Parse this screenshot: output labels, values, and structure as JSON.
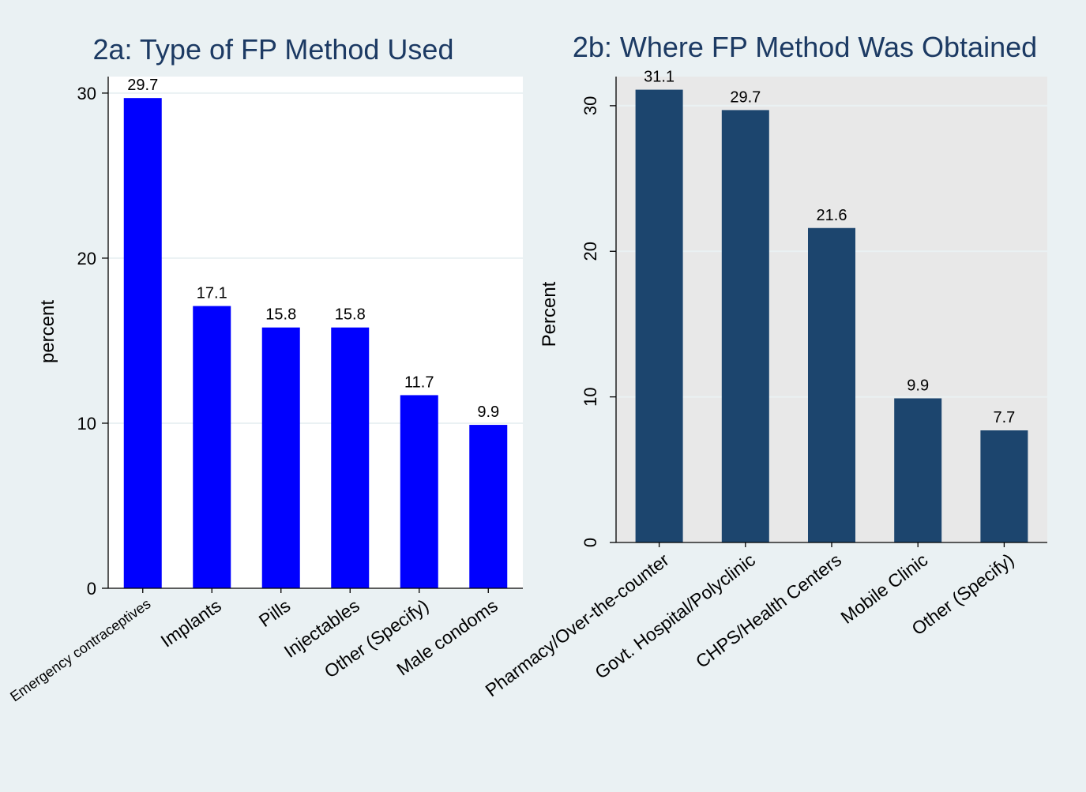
{
  "colors": {
    "background": "#eaf1f3",
    "plot_a_bg": "#ffffff",
    "plot_b_bg": "#e8e8e8",
    "bar_a": "#0000ff",
    "bar_b": "#1c456e",
    "title": "#1c3a63",
    "grid": "#eaf1f3"
  },
  "chart_data": [
    {
      "type": "bar",
      "title": "2a: Type of FP Method Used",
      "ylabel": "percent",
      "xlabel": "",
      "ylim": [
        0,
        31
      ],
      "yticks": [
        0,
        10,
        20,
        30
      ],
      "grid": true,
      "categories": [
        "Emergency contraceptives",
        "Implants",
        "Pills",
        "Injectables",
        "Other (Specify)",
        "Male condoms"
      ],
      "values": [
        29.7,
        17.1,
        15.8,
        15.8,
        11.7,
        9.9
      ],
      "data_labels": [
        "29.7",
        "17.1",
        "15.8",
        "15.8",
        "11.7",
        "9.9"
      ]
    },
    {
      "type": "bar",
      "title": "2b: Where FP Method Was Obtained",
      "ylabel": "Percent",
      "xlabel": "",
      "ylim": [
        0,
        32
      ],
      "yticks": [
        0,
        10,
        20,
        30
      ],
      "grid": true,
      "categories": [
        "Pharmacy/Over-the-counter",
        "Govt. Hospital/Polyclinic",
        "CHPS/Health Centers",
        "Mobile Clinic",
        "Other (Specify)"
      ],
      "values": [
        31.1,
        29.7,
        21.6,
        9.9,
        7.7
      ],
      "data_labels": [
        "31.1",
        "29.7",
        "21.6",
        "9.9",
        "7.7"
      ]
    }
  ]
}
